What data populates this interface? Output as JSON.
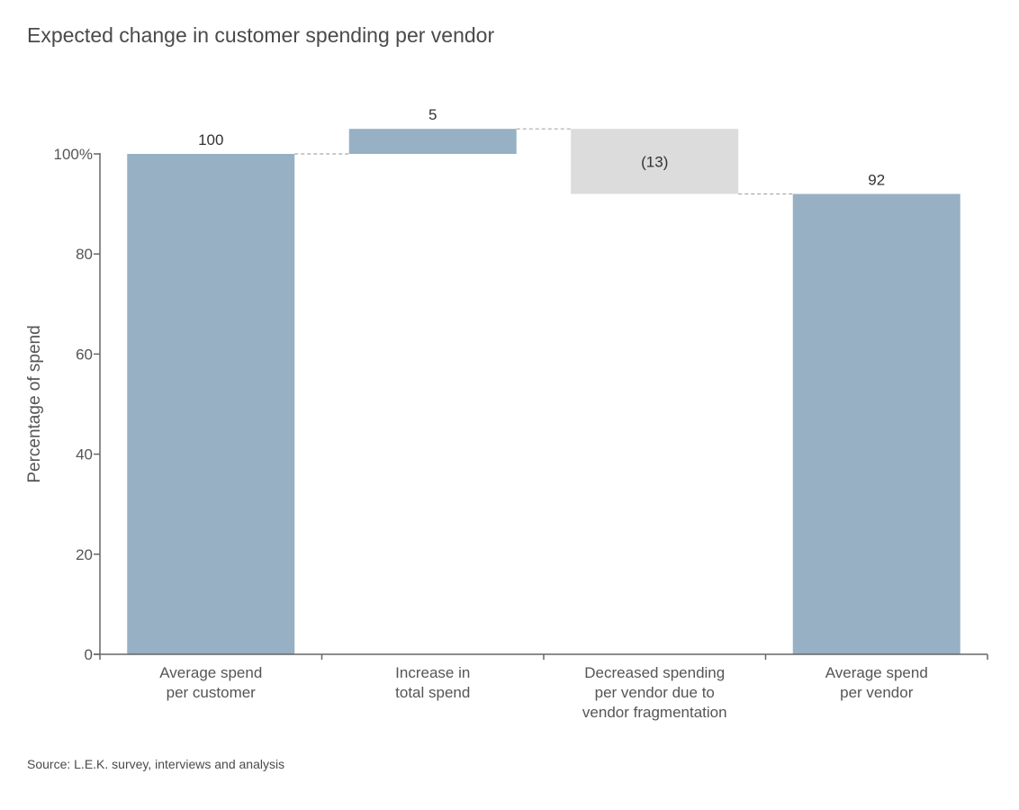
{
  "title": "Expected change in customer spending per vendor",
  "source": "Source: L.E.K. survey, interviews and analysis",
  "chart_data": {
    "type": "bar",
    "subtype": "waterfall",
    "title": "Expected change in customer spending per vendor",
    "ylabel": "Percentage of spend",
    "xlabel": "",
    "ylim": [
      0,
      100
    ],
    "yticks": [
      {
        "value": 0,
        "label": "0"
      },
      {
        "value": 20,
        "label": "20"
      },
      {
        "value": 40,
        "label": "40"
      },
      {
        "value": 60,
        "label": "60"
      },
      {
        "value": 80,
        "label": "80"
      },
      {
        "value": 100,
        "label": "100%"
      }
    ],
    "grid": false,
    "connectors": "dashed",
    "bars": [
      {
        "category": [
          "Average spend",
          "per customer"
        ],
        "kind": "total",
        "start": 0,
        "end": 100,
        "label": "100",
        "color": "#97b0c4"
      },
      {
        "category": [
          "Increase in",
          "total spend"
        ],
        "kind": "increase",
        "start": 100,
        "end": 105,
        "label": "5",
        "color": "#97b0c4"
      },
      {
        "category": [
          "Decreased spending",
          "per vendor due to",
          "vendor fragmentation"
        ],
        "kind": "decrease",
        "start": 105,
        "end": 92,
        "label": "(13)",
        "color": "#dcdcdc"
      },
      {
        "category": [
          "Average spend",
          "per vendor"
        ],
        "kind": "total",
        "start": 0,
        "end": 92,
        "label": "92",
        "color": "#97b0c4"
      }
    ]
  }
}
